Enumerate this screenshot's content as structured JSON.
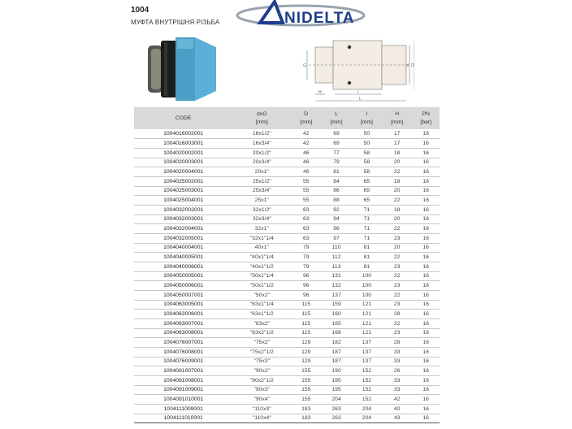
{
  "header": {
    "code": "1004",
    "title": "МУФТА ВНУТРІШНЯ РІЗЬБА",
    "logo_text": "UNIDELTA"
  },
  "drawing_labels": {
    "G": "G",
    "d": "d",
    "D": "D",
    "H": "H",
    "l": "l",
    "L": "L"
  },
  "colors": {
    "logo_blue": "#1f3e8c",
    "fitting_blue": "#5ab0d8",
    "header_bg": "#d9d9d9"
  },
  "table": {
    "headers": [
      [
        "CODE",
        ""
      ],
      [
        "dxG",
        "[mm]"
      ],
      [
        "D",
        "[mm]"
      ],
      [
        "L",
        "[mm]"
      ],
      [
        "l",
        "[mm]"
      ],
      [
        "H",
        "[mm]"
      ],
      [
        "PN",
        "[bar]"
      ]
    ],
    "rows": [
      [
        "1004016002001",
        "16x1/2\"",
        "42",
        "69",
        "50",
        "17",
        "16"
      ],
      [
        "1004016003001",
        "16x3/4\"",
        "42",
        "69",
        "50",
        "17",
        "16"
      ],
      [
        "1004020002001",
        "20x1/2\"",
        "46",
        "77",
        "58",
        "18",
        "16"
      ],
      [
        "1004020003001",
        "20x3/4\"",
        "46",
        "79",
        "58",
        "20",
        "16"
      ],
      [
        "1004020004001",
        "20x1\"",
        "46",
        "81",
        "58",
        "22",
        "16"
      ],
      [
        "1004025002001",
        "25x1/2\"",
        "55",
        "84",
        "65",
        "18",
        "16"
      ],
      [
        "1004025003001",
        "25x3/4\"",
        "55",
        "86",
        "65",
        "20",
        "16"
      ],
      [
        "1004025004001",
        "25x1\"",
        "55",
        "88",
        "65",
        "22",
        "16"
      ],
      [
        "1004032002001",
        "32x1/2\"",
        "63",
        "92",
        "71",
        "18",
        "16"
      ],
      [
        "1004032003001",
        "32x3/4\"",
        "63",
        "94",
        "71",
        "20",
        "16"
      ],
      [
        "1004032004001",
        "32x1\"",
        "63",
        "96",
        "71",
        "22",
        "16"
      ],
      [
        "1004032005001",
        "\"32x1\"1/4",
        "63",
        "97",
        "71",
        "23",
        "16"
      ],
      [
        "1004040004001",
        "40x1\"",
        "79",
        "110",
        "81",
        "20",
        "16"
      ],
      [
        "1004040005001",
        "\"40x1\"1/4",
        "79",
        "112",
        "81",
        "22",
        "16"
      ],
      [
        "1004040006001",
        "\"40x1\"1/2",
        "79",
        "113",
        "81",
        "23",
        "16"
      ],
      [
        "1004050005001",
        "\"50x1\"1/4",
        "96",
        "131",
        "100",
        "22",
        "16"
      ],
      [
        "1004050006001",
        "\"50x1\"1/2",
        "96",
        "132",
        "100",
        "23",
        "16"
      ],
      [
        "1004050007001",
        "\"50x2\"",
        "96",
        "137",
        "100",
        "22",
        "16"
      ],
      [
        "1004063005001",
        "\"63x1\"1/4",
        "115",
        "159",
        "121",
        "23",
        "16"
      ],
      [
        "1004063006001",
        "\"63x1\"1/2",
        "115",
        "160",
        "121",
        "28",
        "16"
      ],
      [
        "1004063007001",
        "\"63x2\"",
        "115",
        "165",
        "121",
        "22",
        "16"
      ],
      [
        "1004063008001",
        "\"63x2\"1/2",
        "115",
        "168",
        "121",
        "23",
        "16"
      ],
      [
        "1004076007001",
        "\"75x2\"",
        "129",
        "182",
        "137",
        "28",
        "16"
      ],
      [
        "1004076008001",
        "\"75x2\"1/2",
        "129",
        "187",
        "137",
        "33",
        "16"
      ],
      [
        "1004076009001",
        "\"75x3\"",
        "129",
        "187",
        "137",
        "33",
        "16"
      ],
      [
        "1004091007001",
        "\"90x2\"",
        "155",
        "190",
        "152",
        "26",
        "16"
      ],
      [
        "1004091008001",
        "\"90x2\"1/2",
        "155",
        "195",
        "152",
        "33",
        "16"
      ],
      [
        "1004091009001",
        "\"90x3\"",
        "155",
        "195",
        "152",
        "33",
        "16"
      ],
      [
        "1004091010001",
        "\"90x4\"",
        "155",
        "204",
        "152",
        "42",
        "16"
      ],
      [
        "1004111009001",
        "\"110x3\"",
        "183",
        "263",
        "204",
        "40",
        "16"
      ],
      [
        "1004111010001",
        "\"110x4\"",
        "183",
        "263",
        "204",
        "43",
        "16"
      ]
    ]
  }
}
